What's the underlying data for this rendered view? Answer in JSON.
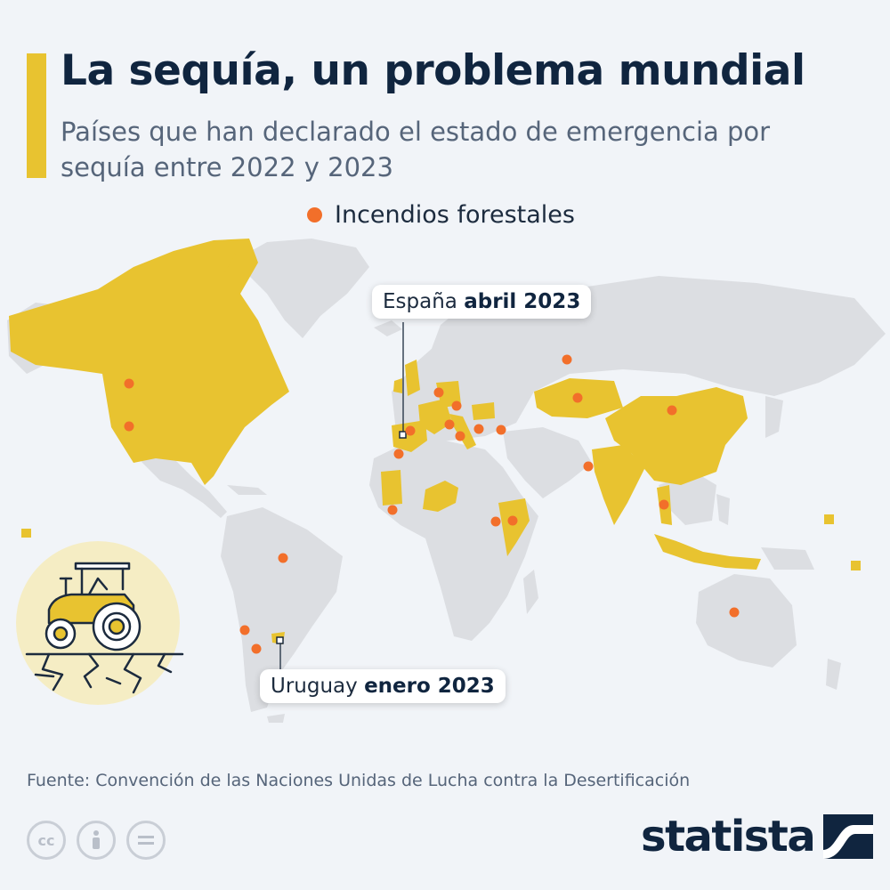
{
  "header": {
    "title": "La sequía, un problema mundial",
    "subtitle": "Países que han declarado el estado de emergencia por sequía entre 2022 y 2023"
  },
  "legend": {
    "label": "Incendios forestales",
    "color": "#f26f2a"
  },
  "colors": {
    "accent": "#e8c330",
    "land": "#dcdee2",
    "fire": "#f26f2a",
    "text_dark": "#10253f"
  },
  "callouts": {
    "spain": {
      "country": "España",
      "date": "abril 2023"
    },
    "uruguay": {
      "country": "Uruguay",
      "date": "enero 2023"
    }
  },
  "drought_countries": [
    "Canadá",
    "Estados Unidos",
    "Reino Unido",
    "Francia",
    "Alemania",
    "Italia",
    "España",
    "Portugal",
    "Rumanía",
    "Kazajistán",
    "China",
    "India",
    "Mauritania",
    "Níger",
    "Etiopía",
    "Kenia",
    "Somalia",
    "Tailandia",
    "Indonesia",
    "Uruguay"
  ],
  "source": "Fuente: Convención de las Naciones Unidas de Lucha contra la Desertificación",
  "license_icons": [
    "cc-icon",
    "attribution-icon",
    "no-derivatives-icon"
  ],
  "brand": {
    "name": "statista"
  }
}
